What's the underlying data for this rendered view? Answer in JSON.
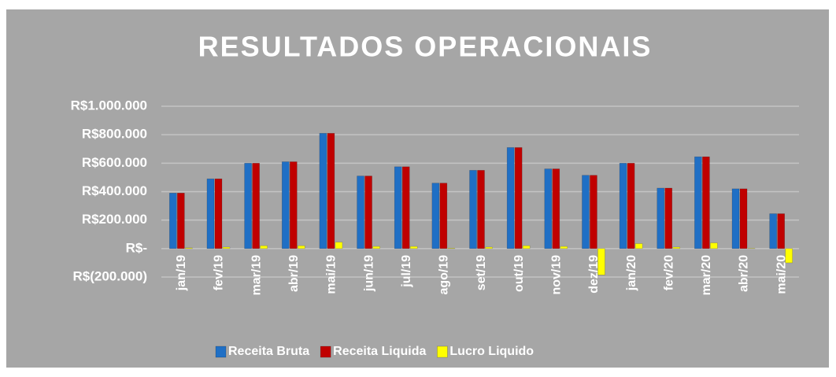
{
  "chart_data": {
    "type": "bar",
    "title": "RESULTADOS OPERACIONAIS",
    "categories": [
      "jan/19",
      "fev/19",
      "mar/19",
      "abr/19",
      "mai/19",
      "jun/19",
      "jul/19",
      "ago/19",
      "set/19",
      "out/19",
      "nov/19",
      "dez/19",
      "jan/20",
      "fev/20",
      "mar/20",
      "abr/20",
      "mai/20"
    ],
    "series": [
      {
        "name": "Receita Bruta",
        "color": "#1f6fc5",
        "values": [
          390000,
          490000,
          600000,
          610000,
          810000,
          510000,
          575000,
          460000,
          550000,
          710000,
          560000,
          515000,
          600000,
          425000,
          645000,
          420000,
          245000
        ]
      },
      {
        "name": "Receita Liquida",
        "color": "#c00000",
        "values": [
          390000,
          490000,
          600000,
          610000,
          810000,
          510000,
          575000,
          460000,
          550000,
          710000,
          560000,
          515000,
          600000,
          425000,
          645000,
          420000,
          245000
        ]
      },
      {
        "name": "Lucro Liquido",
        "color": "#ffff00",
        "values": [
          5000,
          10000,
          20000,
          20000,
          45000,
          15000,
          15000,
          3000,
          10000,
          20000,
          15000,
          -185000,
          35000,
          10000,
          40000,
          2000,
          -100000
        ]
      }
    ],
    "ylim": [
      -200000,
      1000000
    ],
    "yticks": [
      {
        "value": -200000,
        "label": "R$(200.000)"
      },
      {
        "value": 0,
        "label": "R$-"
      },
      {
        "value": 200000,
        "label": "R$200.000"
      },
      {
        "value": 400000,
        "label": "R$400.000"
      },
      {
        "value": 600000,
        "label": "R$600.000"
      },
      {
        "value": 800000,
        "label": "R$800.000"
      },
      {
        "value": 1000000,
        "label": "R$1.000.000"
      }
    ],
    "grid": true,
    "legend": "bottom"
  }
}
